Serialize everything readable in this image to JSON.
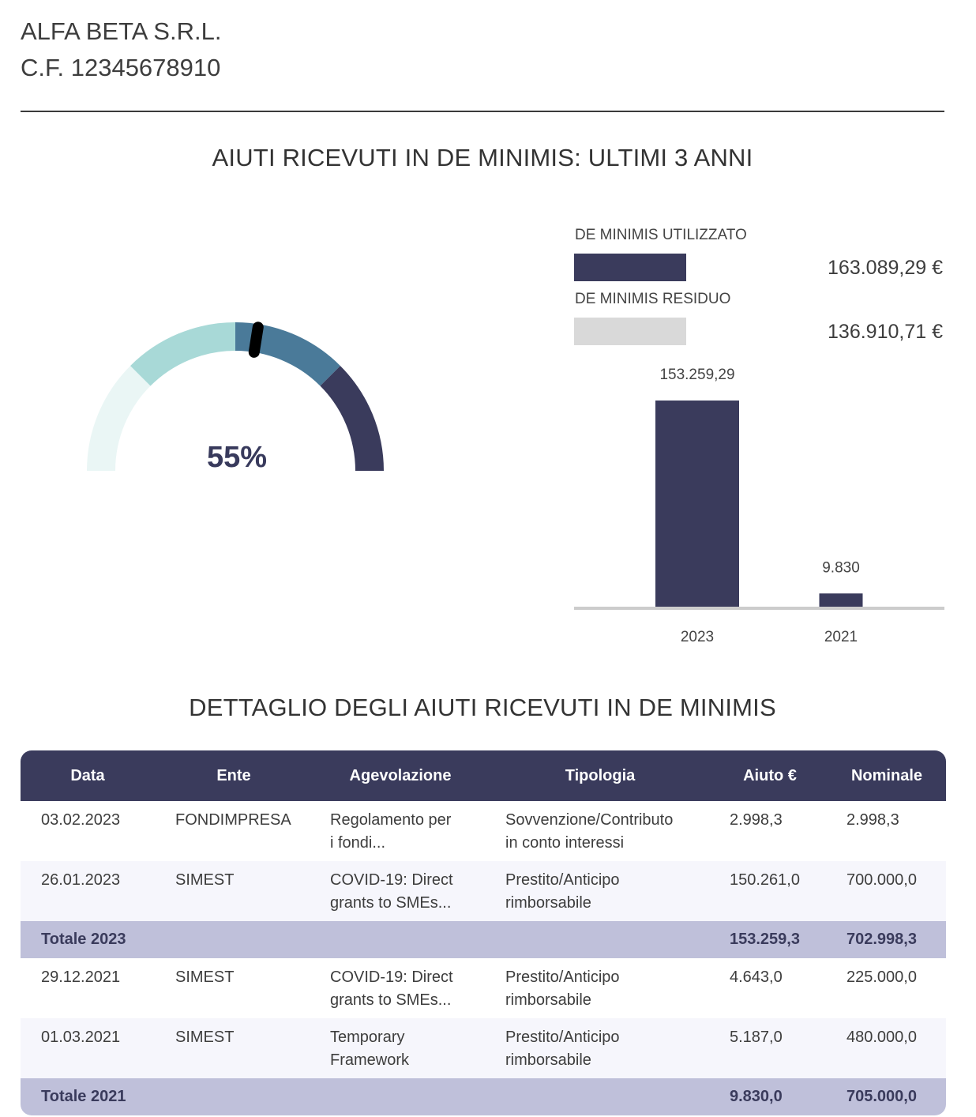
{
  "header": {
    "company_name": "ALFA BETA S.R.L.",
    "fiscal_code": "C.F. 12345678910"
  },
  "section_1": {
    "title": "AIUTI RICEVUTI IN DE MINIMIS: ULTIMI 3 ANNI"
  },
  "gauge": {
    "value_percent": 55,
    "label": "55%",
    "segment_colors": [
      "#eaf6f5",
      "#a8d9d7",
      "#4a7a99",
      "#3a3b5c"
    ],
    "needle_color": "#000000"
  },
  "legend": {
    "used_label": "DE MINIMIS UTILIZZATO",
    "used_value": "163.089,29 €",
    "used_color": "#3a3b5c",
    "residual_label": "DE MINIMIS RESIDUO",
    "residual_value": "136.910,71 €",
    "residual_color": "#d9d9d9"
  },
  "chart_data": {
    "type": "bar",
    "categories": [
      "2023",
      "2021"
    ],
    "values": [
      153259.29,
      9830
    ],
    "value_labels": [
      "153.259,29",
      "9.830"
    ],
    "title": "",
    "xlabel": "",
    "ylabel": "",
    "ylim": [
      0,
      153259.29
    ],
    "grid": false,
    "bar_color": "#3a3b5c"
  },
  "section_2": {
    "title": "DETTAGLIO DEGLI AIUTI RICEVUTI IN DE MINIMIS"
  },
  "table": {
    "headers": {
      "data": "Data",
      "ente": "Ente",
      "agevolazione": "Agevolazione",
      "tipologia": "Tipologia",
      "aiuto": "Aiuto €",
      "nominale": "Nominale"
    },
    "rows": [
      {
        "data": "03.02.2023",
        "ente": "FONDIMPRESA",
        "agev_1": "Regolamento per",
        "agev_2": "i fondi...",
        "tipo_1": "Sovvenzione/Contributo",
        "tipo_2": "in conto interessi",
        "aiuto": "2.998,3",
        "nominale": "2.998,3"
      },
      {
        "data": "26.01.2023",
        "ente": "SIMEST",
        "agev_1": "COVID-19: Direct",
        "agev_2": "grants to SMEs...",
        "tipo_1": "Prestito/Anticipo",
        "tipo_2": "rimborsabile",
        "aiuto": "150.261,0",
        "nominale": "700.000,0"
      },
      {
        "data": "29.12.2021",
        "ente": "SIMEST",
        "agev_1": "COVID-19: Direct",
        "agev_2": "grants to SMEs...",
        "tipo_1": "Prestito/Anticipo",
        "tipo_2": "rimborsabile",
        "aiuto": "4.643,0",
        "nominale": "225.000,0"
      },
      {
        "data": "01.03.2021",
        "ente": "SIMEST",
        "agev_1": "Temporary",
        "agev_2": "Framework",
        "tipo_1": "Prestito/Anticipo",
        "tipo_2": "rimborsabile",
        "aiuto": "5.187,0",
        "nominale": "480.000,0"
      }
    ],
    "totals": [
      {
        "label": "Totale 2023",
        "aiuto": "153.259,3",
        "nominale": "702.998,3"
      },
      {
        "label": "Totale 2021",
        "aiuto": "9.830,0",
        "nominale": "705.000,0"
      }
    ]
  }
}
